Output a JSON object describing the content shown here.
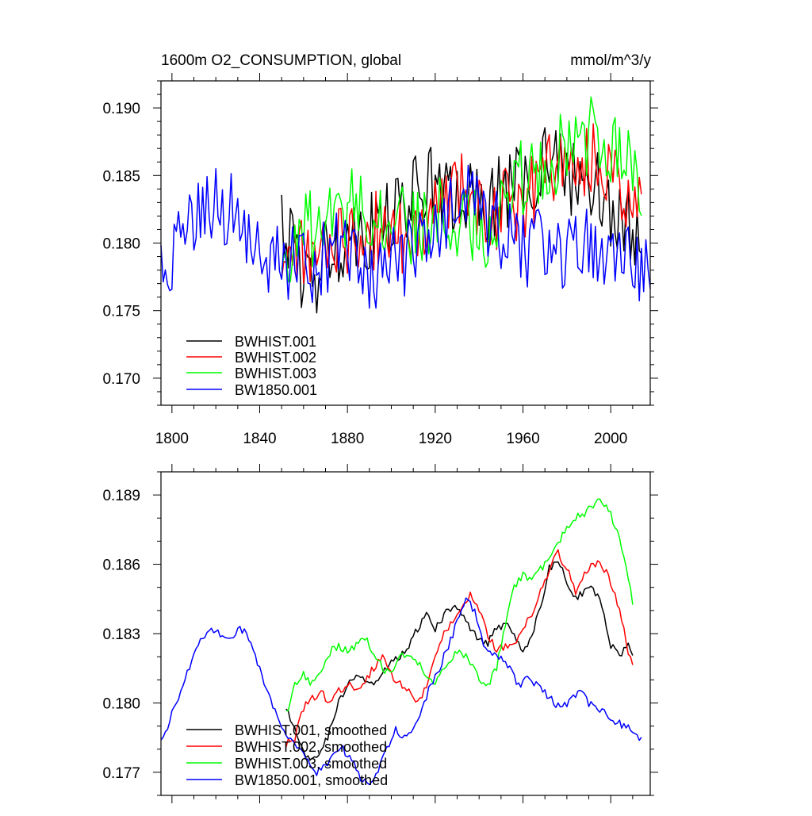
{
  "chart_data": [
    {
      "type": "line",
      "title": "1600m O2_CONSUMPTION, global",
      "units": "mmol/m^3/y",
      "xlim": [
        1795,
        2018
      ],
      "ylim": [
        0.168,
        0.192
      ],
      "xticks": [
        1800,
        1840,
        1880,
        1920,
        1960,
        2000
      ],
      "xtick_labels": [
        "1800",
        "1840",
        "1880",
        "1920",
        "1960",
        "2000"
      ],
      "yticks": [
        0.17,
        0.175,
        0.18,
        0.185,
        0.19
      ],
      "ytick_labels": [
        "0.170",
        "0.175",
        "0.180",
        "0.185",
        "0.190"
      ],
      "legend_position": "lower-left",
      "series": [
        {
          "name": "BWHIST.001",
          "color": "#000000",
          "x": [
            1850,
            1855,
            1860,
            1865,
            1870,
            1875,
            1880,
            1885,
            1890,
            1895,
            1900,
            1905,
            1910,
            1915,
            1920,
            1925,
            1930,
            1935,
            1940,
            1945,
            1950,
            1955,
            1960,
            1965,
            1970,
            1975,
            1980,
            1985,
            1990,
            1995,
            2000,
            2005,
            2010,
            2014
          ],
          "values": [
            0.1815,
            0.1795,
            0.1778,
            0.1762,
            0.179,
            0.18,
            0.1805,
            0.1812,
            0.1808,
            0.1815,
            0.1818,
            0.1825,
            0.1835,
            0.1848,
            0.184,
            0.1832,
            0.183,
            0.1835,
            0.1822,
            0.183,
            0.1838,
            0.1842,
            0.1845,
            0.185,
            0.187,
            0.186,
            0.185,
            0.1845,
            0.1848,
            0.184,
            0.1825,
            0.181,
            0.1815,
            0.1795
          ]
        },
        {
          "name": "BWHIST.002",
          "color": "#ff0000",
          "x": [
            1850,
            1855,
            1860,
            1865,
            1870,
            1875,
            1880,
            1885,
            1890,
            1895,
            1900,
            1905,
            1910,
            1915,
            1920,
            1925,
            1930,
            1935,
            1940,
            1945,
            1950,
            1955,
            1960,
            1965,
            1970,
            1975,
            1980,
            1985,
            1990,
            1995,
            2000,
            2005,
            2010,
            2014
          ],
          "values": [
            0.179,
            0.1795,
            0.1788,
            0.1795,
            0.18,
            0.1805,
            0.1802,
            0.1808,
            0.1805,
            0.1812,
            0.1808,
            0.1805,
            0.18,
            0.181,
            0.1825,
            0.184,
            0.1845,
            0.1838,
            0.1825,
            0.1818,
            0.1822,
            0.183,
            0.1832,
            0.184,
            0.1855,
            0.1862,
            0.1855,
            0.185,
            0.1862,
            0.186,
            0.1855,
            0.1845,
            0.1825,
            0.183
          ]
        },
        {
          "name": "BWHIST.003",
          "color": "#00ff00",
          "x": [
            1850,
            1855,
            1860,
            1865,
            1870,
            1875,
            1880,
            1885,
            1890,
            1895,
            1900,
            1905,
            1910,
            1915,
            1920,
            1925,
            1930,
            1935,
            1940,
            1945,
            1950,
            1955,
            1960,
            1965,
            1970,
            1975,
            1980,
            1985,
            1990,
            1995,
            2000,
            2005,
            2010,
            2014
          ],
          "values": [
            0.1775,
            0.1805,
            0.181,
            0.1808,
            0.1815,
            0.182,
            0.1825,
            0.183,
            0.1828,
            0.182,
            0.1815,
            0.1812,
            0.181,
            0.1815,
            0.1822,
            0.1818,
            0.182,
            0.1815,
            0.1808,
            0.1812,
            0.183,
            0.1845,
            0.1848,
            0.1852,
            0.1858,
            0.1865,
            0.187,
            0.1875,
            0.188,
            0.1885,
            0.1875,
            0.1865,
            0.185,
            0.1845
          ]
        },
        {
          "name": "BW1850.001",
          "color": "#0000ff",
          "x": [
            1795,
            1800,
            1805,
            1810,
            1815,
            1820,
            1825,
            1830,
            1835,
            1840,
            1845,
            1850,
            1855,
            1860,
            1865,
            1870,
            1875,
            1880,
            1885,
            1890,
            1895,
            1900,
            1905,
            1910,
            1915,
            1920,
            1925,
            1930,
            1935,
            1940,
            1945,
            1950,
            1955,
            1960,
            1965,
            1970,
            1975,
            1980,
            1985,
            1990,
            1995,
            2000,
            2005,
            2010,
            2015,
            2018
          ],
          "values": [
            0.1775,
            0.179,
            0.1805,
            0.1815,
            0.1822,
            0.183,
            0.1825,
            0.182,
            0.1812,
            0.18,
            0.179,
            0.1782,
            0.179,
            0.1785,
            0.178,
            0.1792,
            0.1795,
            0.1785,
            0.1778,
            0.1768,
            0.1778,
            0.1788,
            0.1785,
            0.1792,
            0.18,
            0.181,
            0.1818,
            0.1825,
            0.183,
            0.1822,
            0.1812,
            0.1808,
            0.18,
            0.1798,
            0.1795,
            0.1798,
            0.1792,
            0.1792,
            0.1795,
            0.1798,
            0.18,
            0.1795,
            0.179,
            0.1788,
            0.1782,
            0.1775
          ]
        }
      ]
    },
    {
      "type": "line",
      "title": "",
      "xlim": [
        1795,
        2018
      ],
      "ylim": [
        0.176,
        0.19
      ],
      "xticks": [
        1800,
        1840,
        1880,
        1920,
        1960,
        2000
      ],
      "yticks": [
        0.177,
        0.18,
        0.183,
        0.186,
        0.189
      ],
      "ytick_labels": [
        "0.177",
        "0.180",
        "0.183",
        "0.186",
        "0.189"
      ],
      "legend_position": "lower-left",
      "series": [
        {
          "name": "BWHIST.001, smoothed",
          "color": "#000000",
          "x": [
            1852,
            1856,
            1860,
            1864,
            1868,
            1872,
            1876,
            1880,
            1884,
            1888,
            1892,
            1896,
            1900,
            1904,
            1908,
            1912,
            1916,
            1920,
            1924,
            1928,
            1932,
            1936,
            1940,
            1944,
            1948,
            1952,
            1956,
            1960,
            1964,
            1968,
            1972,
            1976,
            1980,
            1984,
            1988,
            1992,
            1996,
            2000,
            2004,
            2008,
            2010
          ],
          "values": [
            0.1799,
            0.1788,
            0.1778,
            0.1775,
            0.1778,
            0.1788,
            0.18,
            0.1808,
            0.1812,
            0.181,
            0.1808,
            0.1812,
            0.1818,
            0.182,
            0.1825,
            0.1832,
            0.1838,
            0.1832,
            0.1838,
            0.1842,
            0.1838,
            0.1832,
            0.1828,
            0.1826,
            0.1832,
            0.1835,
            0.183,
            0.1822,
            0.1828,
            0.1842,
            0.1858,
            0.1862,
            0.1852,
            0.1845,
            0.1848,
            0.185,
            0.1842,
            0.1825,
            0.182,
            0.1825,
            0.1822
          ]
        },
        {
          "name": "BWHIST.002, smoothed",
          "color": "#ff0000",
          "x": [
            1852,
            1856,
            1860,
            1864,
            1868,
            1872,
            1876,
            1880,
            1884,
            1888,
            1892,
            1896,
            1900,
            1904,
            1908,
            1912,
            1916,
            1920,
            1924,
            1928,
            1932,
            1936,
            1940,
            1944,
            1948,
            1952,
            1956,
            1960,
            1964,
            1968,
            1972,
            1976,
            1980,
            1984,
            1988,
            1992,
            1996,
            2000,
            2004,
            2008,
            2010
          ],
          "values": [
            0.1782,
            0.1785,
            0.1798,
            0.1802,
            0.1805,
            0.18,
            0.1805,
            0.1808,
            0.1805,
            0.181,
            0.1815,
            0.182,
            0.1812,
            0.1808,
            0.1805,
            0.18,
            0.1808,
            0.182,
            0.183,
            0.1835,
            0.1842,
            0.1847,
            0.184,
            0.183,
            0.1822,
            0.1825,
            0.1825,
            0.1832,
            0.1838,
            0.1848,
            0.1858,
            0.1865,
            0.1858,
            0.1848,
            0.1855,
            0.186,
            0.186,
            0.1852,
            0.184,
            0.1822,
            0.1818
          ]
        },
        {
          "name": "BWHIST.003, smoothed",
          "color": "#00ff00",
          "x": [
            1852,
            1856,
            1860,
            1864,
            1868,
            1872,
            1876,
            1880,
            1884,
            1888,
            1892,
            1896,
            1900,
            1904,
            1908,
            1912,
            1916,
            1920,
            1924,
            1928,
            1932,
            1936,
            1940,
            1944,
            1948,
            1952,
            1956,
            1960,
            1964,
            1968,
            1972,
            1976,
            1980,
            1984,
            1988,
            1992,
            1996,
            2000,
            2004,
            2008,
            2010
          ],
          "values": [
            0.1795,
            0.1808,
            0.1812,
            0.1808,
            0.1815,
            0.1822,
            0.1825,
            0.1822,
            0.1825,
            0.1828,
            0.1822,
            0.1815,
            0.1812,
            0.182,
            0.1822,
            0.1818,
            0.1812,
            0.1808,
            0.1815,
            0.182,
            0.1822,
            0.1818,
            0.181,
            0.1808,
            0.1815,
            0.1835,
            0.185,
            0.1855,
            0.1852,
            0.1858,
            0.1862,
            0.187,
            0.1875,
            0.188,
            0.1882,
            0.1886,
            0.1888,
            0.1882,
            0.187,
            0.1855,
            0.1843
          ]
        },
        {
          "name": "BW1850.001, smoothed",
          "color": "#0000ff",
          "x": [
            1795,
            1798,
            1802,
            1806,
            1810,
            1814,
            1818,
            1822,
            1826,
            1830,
            1834,
            1838,
            1842,
            1846,
            1850,
            1854,
            1858,
            1862,
            1866,
            1870,
            1874,
            1878,
            1882,
            1886,
            1890,
            1894,
            1898,
            1902,
            1906,
            1910,
            1914,
            1918,
            1922,
            1926,
            1930,
            1934,
            1938,
            1942,
            1946,
            1950,
            1954,
            1958,
            1962,
            1966,
            1970,
            1974,
            1978,
            1982,
            1986,
            1990,
            1994,
            1998,
            2002,
            2006,
            2010,
            2014
          ],
          "values": [
            0.1784,
            0.179,
            0.18,
            0.181,
            0.182,
            0.1828,
            0.1832,
            0.183,
            0.1828,
            0.1832,
            0.183,
            0.182,
            0.1808,
            0.1798,
            0.179,
            0.1785,
            0.178,
            0.1775,
            0.177,
            0.1772,
            0.1778,
            0.178,
            0.1775,
            0.1768,
            0.1765,
            0.177,
            0.178,
            0.1788,
            0.1785,
            0.179,
            0.1798,
            0.1808,
            0.1815,
            0.1825,
            0.1835,
            0.1845,
            0.184,
            0.1825,
            0.182,
            0.182,
            0.1815,
            0.1808,
            0.181,
            0.1808,
            0.1805,
            0.18,
            0.1798,
            0.1802,
            0.1805,
            0.18,
            0.1798,
            0.1795,
            0.1792,
            0.179,
            0.1788,
            0.1784
          ]
        }
      ]
    }
  ]
}
